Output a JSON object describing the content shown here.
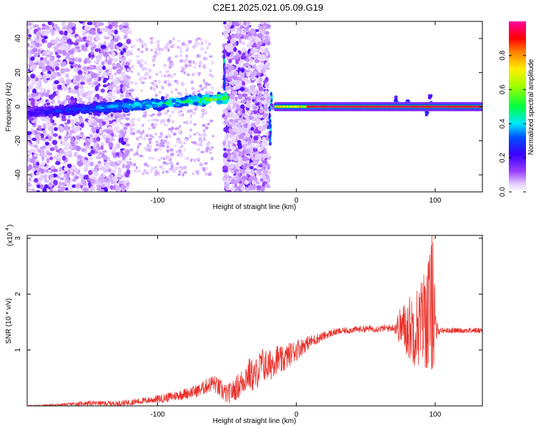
{
  "title": "C2E1.2025.021.05.09.G19",
  "chart_data": [
    {
      "type": "heatmap",
      "xlabel": "Height of straight line (km)",
      "ylabel": "Frequency (Hz)",
      "xlim": [
        -194,
        134
      ],
      "ylim": [
        -50,
        50
      ],
      "xticks": [
        -100,
        0,
        100
      ],
      "xtick_labels": [
        "-100",
        "0",
        "100"
      ],
      "yticks": [
        -40,
        -20,
        0,
        20,
        40
      ],
      "ytick_labels": [
        "-40",
        "-20",
        "0",
        "20",
        "40"
      ],
      "colorbar": {
        "label": "Normalized spectral amplitude",
        "range": [
          0,
          1
        ],
        "ticks": [
          0.0,
          0.2,
          0.4,
          0.6,
          0.8
        ],
        "tick_labels": [
          "0.0",
          "0.2",
          "0.4",
          "0.6",
          "0.8"
        ],
        "colormap": "rainbow (white-purple-blue-cyan-green-yellow-orange-red-magenta)"
      },
      "regions": [
        {
          "x": [
            -194,
            -120
          ],
          "freq_spread": [
            -50,
            50
          ],
          "level": "scattered low"
        },
        {
          "x": [
            -194,
            -50
          ],
          "freq_center_start": -4,
          "freq_center_end": 5,
          "level": "0.3-0.6"
        },
        {
          "x": [
            -53,
            -51
          ],
          "freq_spike": 27,
          "level": "0.5"
        },
        {
          "x": [
            -52,
            -20
          ],
          "freq_spread": [
            -50,
            50
          ],
          "level": "scattered low"
        },
        {
          "x": [
            -20,
            -18
          ],
          "freq_spike": -20,
          "level": "0.3"
        },
        {
          "x": [
            -18,
            134
          ],
          "freq_center": 0,
          "level": "1.0"
        }
      ]
    },
    {
      "type": "line",
      "xlabel": "Height of straight line (km)",
      "ylabel": "SNR (10 * v/v)",
      "y_multiplier_label": "(x10",
      "y_multiplier_exp": "4",
      "xlim": [
        -194,
        134
      ],
      "ylim": [
        0,
        3.05
      ],
      "xticks": [
        -100,
        0,
        100
      ],
      "xtick_labels": [
        "-100",
        "0",
        "100"
      ],
      "yticks": [
        1,
        2,
        3
      ],
      "ytick_labels": [
        "1",
        "2",
        "3"
      ],
      "color": "#e8322c",
      "series": [
        {
          "x": [
            -194,
            -170,
            -150,
            -130,
            -110,
            -95,
            -80,
            -70,
            -60,
            -55,
            -50,
            -45,
            -40,
            -35,
            -30,
            -25,
            -20,
            -15,
            -10,
            -5,
            0,
            5,
            10,
            15,
            20,
            25,
            30,
            40,
            50,
            60,
            70,
            75,
            80,
            85,
            88,
            90,
            92,
            95,
            97,
            98,
            99,
            100,
            102,
            105,
            110,
            120,
            134
          ],
          "y": [
            0.0,
            0.02,
            0.05,
            0.04,
            0.09,
            0.14,
            0.22,
            0.28,
            0.42,
            0.3,
            0.2,
            0.28,
            0.4,
            0.58,
            0.52,
            0.75,
            0.7,
            0.85,
            0.8,
            0.92,
            1.0,
            1.08,
            1.15,
            1.2,
            1.25,
            1.3,
            1.33,
            1.36,
            1.38,
            1.38,
            1.4,
            1.42,
            1.4,
            1.4,
            1.45,
            1.5,
            1.6,
            1.65,
            1.7,
            1.85,
            1.6,
            1.4,
            1.35,
            1.35,
            1.35,
            1.35,
            1.35
          ],
          "noise_amp": [
            0.01,
            0.02,
            0.04,
            0.05,
            0.06,
            0.08,
            0.1,
            0.12,
            0.15,
            0.18,
            0.18,
            0.2,
            0.25,
            0.3,
            0.3,
            0.3,
            0.3,
            0.28,
            0.25,
            0.22,
            0.2,
            0.15,
            0.12,
            0.1,
            0.08,
            0.07,
            0.06,
            0.06,
            0.06,
            0.06,
            0.07,
            0.35,
            0.55,
            0.7,
            0.75,
            0.8,
            0.9,
            1.1,
            1.2,
            1.4,
            1.2,
            0.4,
            0.08,
            0.05,
            0.05,
            0.05,
            0.05
          ]
        }
      ]
    }
  ]
}
